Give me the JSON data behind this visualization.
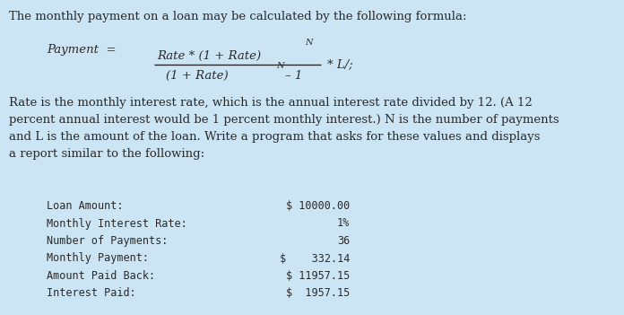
{
  "bg_color": "#cce5f5",
  "title_text": "The monthly payment on a loan may be calculated by the following formula:",
  "title_fontsize": 9.5,
  "body_text": "Rate is the monthly interest rate, which is the annual interest rate divided by 12. (A 12\npercent annual interest would be 1 percent monthly interest.) N is the number of payments\nand L is the amount of the loan. Write a program that asks for these values and displays\na report similar to the following:",
  "body_fontsize": 9.5,
  "report_labels": [
    "Loan Amount:",
    "Monthly Interest Rate:",
    "Number of Payments:",
    "Monthly Payment:",
    "Amount Paid Back:",
    "Interest Paid:"
  ],
  "report_values": [
    "$ 10000.00",
    "1%",
    "36",
    "$    332.14",
    "$ 11957.15",
    "$  1957.15"
  ],
  "monospace_fontsize": 8.5,
  "text_color": "#2a2a2a",
  "formula_fontsize": 9.5,
  "formula_super_fontsize": 7.0
}
